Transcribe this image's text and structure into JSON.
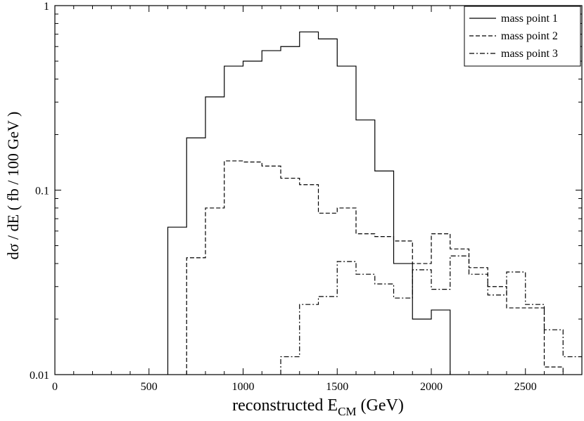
{
  "chart_data": {
    "type": "line",
    "step": true,
    "title": "",
    "xlabel_main": "reconstructed E",
    "xlabel_sub": "CM",
    "xlabel_unit": " (GeV)",
    "ylabel": "dσ / dE ( fb / 100 GeV )",
    "xlim": [
      0,
      2800
    ],
    "ylim": [
      0.01,
      1
    ],
    "yscale": "log",
    "grid": false,
    "legend_position": "top-right",
    "xticks": [
      0,
      500,
      1000,
      1500,
      2000,
      2500
    ],
    "xtick_labels": [
      "0",
      "500",
      "1000",
      "1500",
      "2000",
      "2500"
    ],
    "yticks": [
      0.01,
      0.1,
      1
    ],
    "ytick_labels": [
      "0.01",
      "0.1",
      "1"
    ],
    "bin_edges": [
      600,
      700,
      800,
      900,
      1000,
      1100,
      1200,
      1300,
      1400,
      1500,
      1600,
      1700,
      1800,
      1900,
      2000,
      2100,
      2200,
      2300,
      2400,
      2500,
      2600,
      2700,
      2800
    ],
    "series": [
      {
        "name": "mass point 1",
        "dash": "solid",
        "bins": [
          [
            600,
            700,
            0.063
          ],
          [
            700,
            800,
            0.192
          ],
          [
            800,
            900,
            0.32
          ],
          [
            900,
            1000,
            0.47
          ],
          [
            1000,
            1100,
            0.5
          ],
          [
            1100,
            1200,
            0.57
          ],
          [
            1200,
            1300,
            0.6
          ],
          [
            1300,
            1400,
            0.72
          ],
          [
            1400,
            1500,
            0.66
          ],
          [
            1500,
            1600,
            0.47
          ],
          [
            1600,
            1700,
            0.24
          ],
          [
            1700,
            1800,
            0.127
          ],
          [
            1800,
            1900,
            0.04
          ],
          [
            1900,
            2000,
            0.02
          ],
          [
            2000,
            2100,
            0.0224
          ]
        ]
      },
      {
        "name": "mass point 2",
        "dash": "dashed",
        "bins": [
          [
            700,
            800,
            0.043
          ],
          [
            800,
            900,
            0.08
          ],
          [
            900,
            1000,
            0.144
          ],
          [
            1000,
            1100,
            0.142
          ],
          [
            1100,
            1200,
            0.135
          ],
          [
            1200,
            1300,
            0.116
          ],
          [
            1300,
            1400,
            0.107
          ],
          [
            1400,
            1500,
            0.075
          ],
          [
            1500,
            1600,
            0.08
          ],
          [
            1600,
            1700,
            0.058
          ],
          [
            1700,
            1800,
            0.056
          ],
          [
            1800,
            1900,
            0.053
          ],
          [
            1900,
            2000,
            0.04
          ],
          [
            2000,
            2100,
            0.058
          ],
          [
            2100,
            2200,
            0.048
          ],
          [
            2200,
            2300,
            0.038
          ],
          [
            2300,
            2400,
            0.03
          ],
          [
            2400,
            2500,
            0.023
          ],
          [
            2500,
            2600,
            0.023
          ],
          [
            2600,
            2700,
            0.011
          ]
        ]
      },
      {
        "name": "mass point 3",
        "dash": "dashdot",
        "bins": [
          [
            1200,
            1300,
            0.0125
          ],
          [
            1300,
            1400,
            0.024
          ],
          [
            1400,
            1500,
            0.0265
          ],
          [
            1500,
            1600,
            0.041
          ],
          [
            1600,
            1700,
            0.035
          ],
          [
            1700,
            1800,
            0.031
          ],
          [
            1800,
            1900,
            0.026
          ],
          [
            1900,
            2000,
            0.037
          ],
          [
            2000,
            2100,
            0.029
          ],
          [
            2100,
            2200,
            0.044
          ],
          [
            2200,
            2300,
            0.035
          ],
          [
            2300,
            2400,
            0.027
          ],
          [
            2400,
            2500,
            0.036
          ],
          [
            2500,
            2600,
            0.024
          ],
          [
            2600,
            2700,
            0.0175
          ],
          [
            2700,
            2800,
            0.0125
          ]
        ]
      }
    ]
  }
}
